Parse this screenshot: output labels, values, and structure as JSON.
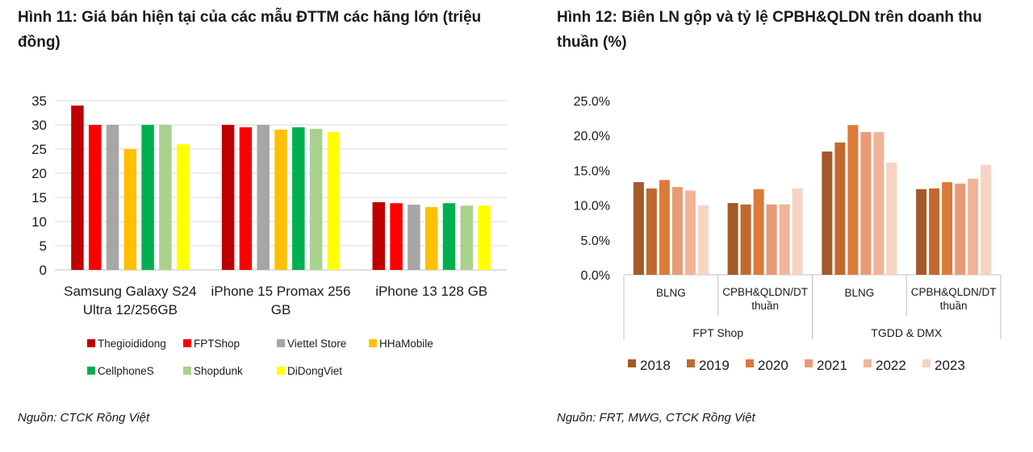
{
  "figure_left": {
    "title": "Hình 11: Giá bán hiện tại của các mẫu ĐTTM các hãng lớn (triệu đồng)",
    "source": "Nguồn: CTCK Rồng Việt"
  },
  "figure_right": {
    "title": "Hình 12: Biên LN gộp và tỷ lệ CPBH&QLDN trên doanh thu thuần (%)",
    "source": "Nguồn: FRT, MWG, CTCK Rồng Việt"
  },
  "chart_data": [
    {
      "type": "bar",
      "title": "Hình 11: Giá bán hiện tại của các mẫu ĐTTM các hãng lớn (triệu đồng)",
      "categories": [
        [
          "Samsung Galaxy S24",
          "Ultra 12/256GB"
        ],
        [
          "iPhone 15 Promax 256",
          "GB"
        ],
        [
          "iPhone 13 128 GB"
        ]
      ],
      "series": [
        {
          "name": "Thegioididong",
          "color": "#c00000",
          "values": [
            34,
            30,
            14
          ]
        },
        {
          "name": "FPTShop",
          "color": "#ff0000",
          "values": [
            30,
            29.5,
            13.8
          ]
        },
        {
          "name": "Viettel Store",
          "color": "#a6a6a6",
          "values": [
            30,
            30,
            13.5
          ]
        },
        {
          "name": "HHaMobile",
          "color": "#ffc000",
          "values": [
            25,
            29,
            13
          ]
        },
        {
          "name": "CellphoneS",
          "color": "#00b050",
          "values": [
            30,
            29.5,
            13.8
          ]
        },
        {
          "name": "Shopdunk",
          "color": "#a9d18e",
          "values": [
            30,
            29.2,
            13.3
          ]
        },
        {
          "name": "DiDongViet",
          "color": "#ffff00",
          "values": [
            26,
            28.5,
            13.3
          ]
        }
      ],
      "ylim": [
        0,
        35
      ],
      "yticks": [
        "0",
        "5",
        "10",
        "15",
        "20",
        "25",
        "30",
        "35"
      ],
      "grid": true,
      "legend_position": "bottom"
    },
    {
      "type": "bar",
      "title": "Hình 12: Biên LN gộp và tỷ lệ CPBH&QLDN trên doanh thu thuần (%)",
      "groups": [
        {
          "name": "FPT Shop",
          "categories": [
            "BLNG",
            "CPBH&QLDN/DT thuần"
          ]
        },
        {
          "name": "TGDD & DMX",
          "categories": [
            "BLNG",
            "CPBH&QLDN/DT thuần"
          ]
        }
      ],
      "series": [
        {
          "name": "2018",
          "color": "#a5582a",
          "values": [
            13.3,
            10.3,
            17.7,
            12.3
          ]
        },
        {
          "name": "2019",
          "color": "#c0692e",
          "values": [
            12.4,
            10.1,
            19.0,
            12.4
          ]
        },
        {
          "name": "2020",
          "color": "#dc7a3a",
          "values": [
            13.6,
            12.3,
            21.5,
            13.3
          ]
        },
        {
          "name": "2021",
          "color": "#e89a74",
          "values": [
            12.6,
            10.1,
            20.5,
            13.1
          ]
        },
        {
          "name": "2022",
          "color": "#f0b596",
          "values": [
            12.1,
            10.1,
            20.5,
            13.8
          ]
        },
        {
          "name": "2023",
          "color": "#f6d3c2",
          "values": [
            10.0,
            12.4,
            16.1,
            15.8
          ]
        }
      ],
      "ylim": [
        0,
        25
      ],
      "yticks": [
        "0.0%",
        "5.0%",
        "10.0%",
        "15.0%",
        "20.0%",
        "25.0%"
      ],
      "grid": false,
      "legend_position": "bottom"
    }
  ]
}
